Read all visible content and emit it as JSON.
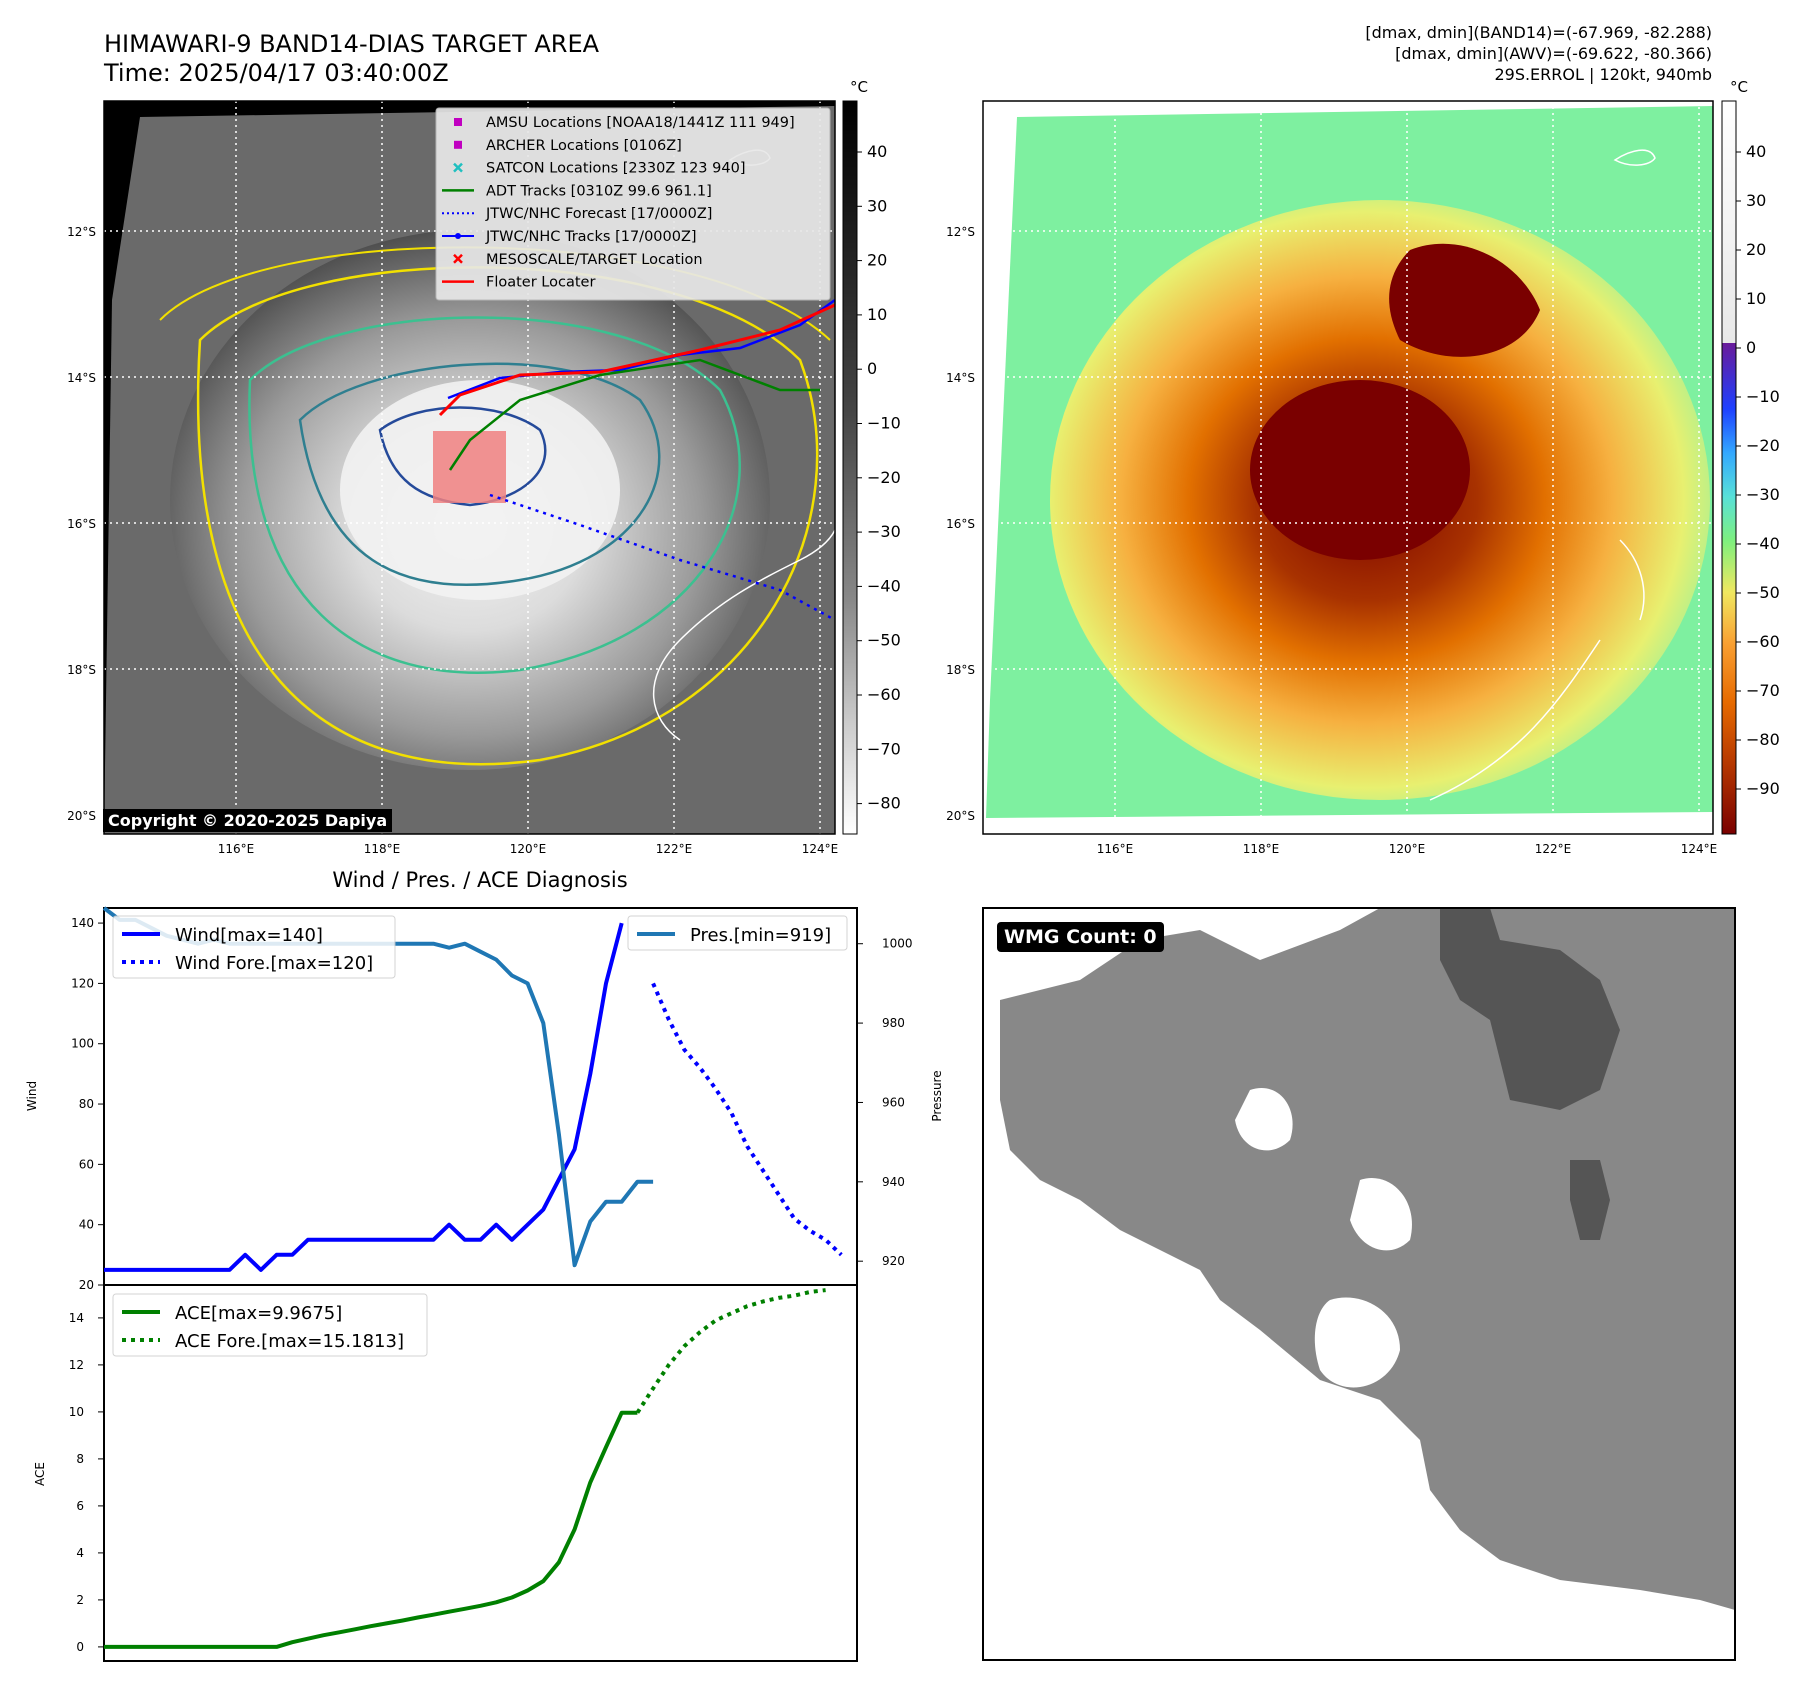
{
  "header": {
    "title_line1": "HIMAWARI-9 BAND14-DIAS TARGET AREA",
    "title_line2": "Time: 2025/04/17 03:40:00Z",
    "info_line1": "[dmax, dmin](BAND14)=(-67.969, -82.288)",
    "info_line2": "[dmax, dmin](AWV)=(-69.622, -80.366)",
    "info_line3": "29S.ERROL | 120kt, 940mb"
  },
  "map_axes": {
    "lat_ticks": [
      "12°S",
      "14°S",
      "16°S",
      "18°S",
      "20°S"
    ],
    "lon_ticks": [
      "116°E",
      "118°E",
      "120°E",
      "122°E",
      "124°E"
    ]
  },
  "colorbar1": {
    "unit": "°C",
    "ticks": [
      "40",
      "30",
      "20",
      "10",
      "0",
      "−10",
      "−20",
      "−30",
      "−40",
      "−50",
      "−60",
      "−70",
      "−80"
    ]
  },
  "colorbar2": {
    "unit": "°C",
    "ticks": [
      "40",
      "30",
      "20",
      "10",
      "0",
      "−10",
      "−20",
      "−30",
      "−40",
      "−50",
      "−60",
      "−70",
      "−80",
      "−90"
    ]
  },
  "legend1": [
    {
      "label": "AMSU Locations [NOAA18/1441Z 111 949]",
      "marker": "square",
      "color": "#c000c0"
    },
    {
      "label": "ARCHER Locations [0106Z]",
      "marker": "square",
      "color": "#c000c0"
    },
    {
      "label": "SATCON Locations [2330Z 123 940]",
      "marker": "x",
      "color": "#20c0c0"
    },
    {
      "label": "ADT Tracks [0310Z 99.6 961.1]",
      "marker": "line",
      "color": "#008000"
    },
    {
      "label": "JTWC/NHC Forecast [17/0000Z]",
      "marker": "dotted",
      "color": "#0000ff"
    },
    {
      "label": "JTWC/NHC Tracks [17/0000Z]",
      "marker": "line-dot",
      "color": "#0000ff"
    },
    {
      "label": "MESOSCALE/TARGET Location",
      "marker": "x",
      "color": "#ff0000"
    },
    {
      "label": "Floater Locater",
      "marker": "line",
      "color": "#ff0000"
    }
  ],
  "copyright": "Copyright © 2020-2025 Dapiya",
  "wmg_badge": "WMG Count: 0",
  "colors": {
    "wind": "#0000ff",
    "pressure": "#1f77b4",
    "ace": "#008000"
  },
  "chart_data": [
    {
      "type": "line",
      "title": "Wind / Pres. / ACE Diagnosis",
      "ylabel": "Wind",
      "y2label": "Pressure",
      "ylim": [
        20,
        145
      ],
      "y2lim": [
        914,
        1009
      ],
      "yticks": [
        20,
        40,
        60,
        80,
        100,
        120,
        140
      ],
      "y2ticks": [
        920,
        940,
        960,
        980,
        1000
      ],
      "xlim": [
        0,
        48
      ],
      "series": [
        {
          "name": "Wind[max=140]",
          "axis": "left",
          "style": "solid",
          "x": [
            0,
            1,
            2,
            3,
            4,
            5,
            6,
            7,
            8,
            9,
            10,
            11,
            12,
            13,
            14,
            15,
            16,
            17,
            18,
            19,
            20,
            21,
            22,
            23,
            24,
            25,
            26,
            27,
            28,
            29,
            30,
            31,
            32,
            33
          ],
          "y": [
            25,
            25,
            25,
            25,
            25,
            25,
            25,
            25,
            25,
            30,
            25,
            30,
            30,
            35,
            35,
            35,
            35,
            35,
            35,
            35,
            35,
            35,
            40,
            35,
            35,
            40,
            35,
            40,
            45,
            55,
            65,
            90,
            120,
            140
          ]
        },
        {
          "name": "Wind Fore.[max=120]",
          "axis": "left",
          "style": "dotted",
          "x": [
            35,
            36,
            37,
            38,
            39,
            40,
            41,
            42,
            43,
            44,
            45,
            46,
            47
          ],
          "y": [
            120,
            108,
            98,
            92,
            85,
            77,
            66,
            58,
            50,
            42,
            38,
            35,
            30
          ]
        },
        {
          "name": "Pres.[min=919]",
          "axis": "right",
          "style": "solid",
          "x": [
            0,
            1,
            2,
            3,
            4,
            5,
            6,
            7,
            8,
            9,
            10,
            11,
            12,
            13,
            14,
            15,
            16,
            17,
            18,
            19,
            20,
            21,
            22,
            23,
            24,
            25,
            26,
            27,
            28,
            29,
            30,
            31,
            32,
            33,
            34,
            35
          ],
          "y": [
            1009,
            1006,
            1006,
            1004,
            1002,
            1001,
            1000,
            1001,
            1000,
            1000,
            1000,
            1000,
            1000,
            1000,
            1000,
            1000,
            1000,
            1000,
            1000,
            1000,
            1000,
            1000,
            999,
            1000,
            998,
            996,
            992,
            990,
            980,
            952,
            919,
            930,
            935,
            935,
            940,
            940
          ]
        }
      ],
      "legend": [
        "Wind[max=140]",
        "Wind Fore.[max=120]",
        "Pres.[min=919]"
      ]
    },
    {
      "type": "line",
      "ylabel": "ACE",
      "ylim": [
        -0.6,
        15.4
      ],
      "yticks": [
        0,
        2,
        4,
        6,
        8,
        10,
        12,
        14
      ],
      "xlim": [
        0,
        48
      ],
      "series": [
        {
          "name": "ACE[max=9.9675]",
          "style": "solid",
          "x": [
            0,
            1,
            2,
            3,
            4,
            5,
            6,
            7,
            8,
            9,
            10,
            11,
            12,
            13,
            14,
            15,
            16,
            17,
            18,
            19,
            20,
            21,
            22,
            23,
            24,
            25,
            26,
            27,
            28,
            29,
            30,
            31,
            32,
            33,
            34
          ],
          "y": [
            0,
            0,
            0,
            0,
            0,
            0,
            0,
            0,
            0,
            0,
            0,
            0,
            0.2,
            0.35,
            0.5,
            0.62,
            0.75,
            0.88,
            1.0,
            1.12,
            1.25,
            1.37,
            1.5,
            1.62,
            1.75,
            1.9,
            2.1,
            2.4,
            2.8,
            3.6,
            5.0,
            7.0,
            8.5,
            9.9675,
            9.9675
          ]
        },
        {
          "name": "ACE Fore.[max=15.1813]",
          "style": "dotted",
          "x": [
            34,
            35,
            36,
            37,
            38,
            39,
            40,
            41,
            42,
            43,
            44,
            45,
            46
          ],
          "y": [
            9.9675,
            11.0,
            12.0,
            12.8,
            13.4,
            13.9,
            14.2,
            14.5,
            14.7,
            14.85,
            14.95,
            15.1,
            15.1813
          ]
        }
      ],
      "legend": [
        "ACE[max=9.9675]",
        "ACE Fore.[max=15.1813]"
      ]
    }
  ]
}
